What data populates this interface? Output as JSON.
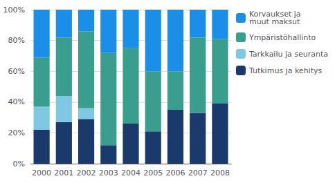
{
  "chart_data": {
    "type": "bar",
    "stacked": true,
    "categories": [
      "2000",
      "2001",
      "2002",
      "2003",
      "2004",
      "2005",
      "2006",
      "2007",
      "2008"
    ],
    "series": [
      {
        "name": "Tutkimus ja kehitys",
        "color": "#1A3A6B",
        "values": [
          22,
          27,
          29,
          12,
          26,
          21,
          35,
          33,
          39
        ]
      },
      {
        "name": "Tarkkailu ja seuranta",
        "color": "#7EC8E3",
        "values": [
          15,
          17,
          7,
          0,
          0,
          0,
          0,
          0,
          0
        ]
      },
      {
        "name": "Ympäristöhallinto",
        "color": "#3A9E8F",
        "values": [
          32,
          38,
          50,
          60,
          49,
          39,
          25,
          49,
          42
        ]
      },
      {
        "name": "Korvaukset ja\nmuut maksut",
        "color": "#1B8FE8",
        "values": [
          31,
          18,
          14,
          28,
          25,
          40,
          40,
          18,
          19
        ]
      }
    ],
    "ylim": [
      0,
      100
    ],
    "yticks": [
      {
        "value": 0,
        "label": "0%"
      },
      {
        "value": 20,
        "label": "20%"
      },
      {
        "value": 40,
        "label": "40%"
      },
      {
        "value": 60,
        "label": "60%"
      },
      {
        "value": 80,
        "label": "80%"
      },
      {
        "value": 100,
        "label": "100%"
      }
    ],
    "grid": true,
    "legend": "right"
  }
}
